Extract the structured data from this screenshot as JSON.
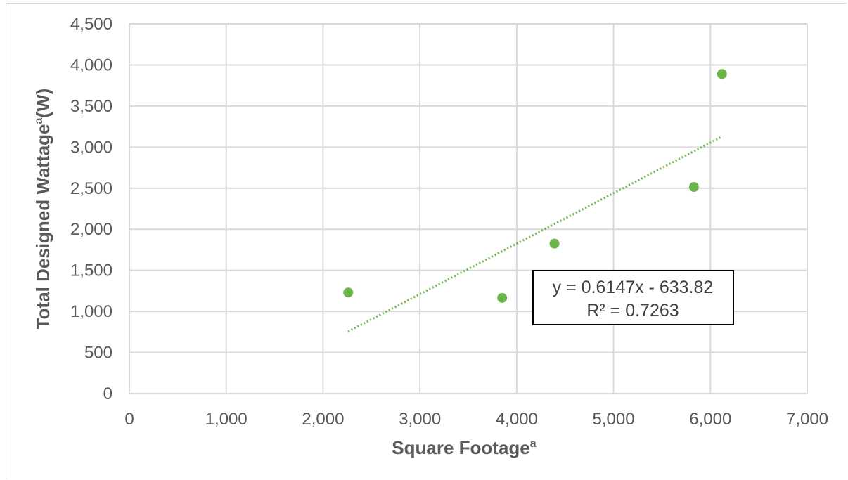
{
  "chart_data": {
    "type": "scatter",
    "xlabel": "Square Footage",
    "xlabel_superscript": "a",
    "ylabel": "Total Designed Wattage",
    "ylabel_superscript": "a",
    "ylabel_unit": "(W)",
    "xlim": [
      0,
      7000
    ],
    "ylim": [
      0,
      4500
    ],
    "x_ticks": [
      0,
      1000,
      2000,
      3000,
      4000,
      5000,
      6000,
      7000
    ],
    "x_tick_labels": [
      "0",
      "1,000",
      "2,000",
      "3,000",
      "4,000",
      "5,000",
      "6,000",
      "7,000"
    ],
    "y_ticks": [
      0,
      500,
      1000,
      1500,
      2000,
      2500,
      3000,
      3500,
      4000,
      4500
    ],
    "y_tick_labels": [
      "0",
      "500",
      "1,000",
      "1,500",
      "2,000",
      "2,500",
      "3,000",
      "3,500",
      "4,000",
      "4,500"
    ],
    "grid": true,
    "points": [
      {
        "x": 2260,
        "y": 1230
      },
      {
        "x": 3850,
        "y": 1165
      },
      {
        "x": 4390,
        "y": 1825
      },
      {
        "x": 5830,
        "y": 2515
      },
      {
        "x": 6120,
        "y": 3890
      }
    ],
    "trendline": {
      "type": "linear",
      "slope": 0.6147,
      "intercept": -633.82,
      "x_range": [
        2260,
        6120
      ],
      "equation_label": "y = 0.6147x - 633.82",
      "r2_label": "R² = 0.7263"
    },
    "colors": {
      "marker": "#6ab44a",
      "trendline": "#6ab44a",
      "grid": "#d9d9d9",
      "text": "#595959"
    }
  }
}
